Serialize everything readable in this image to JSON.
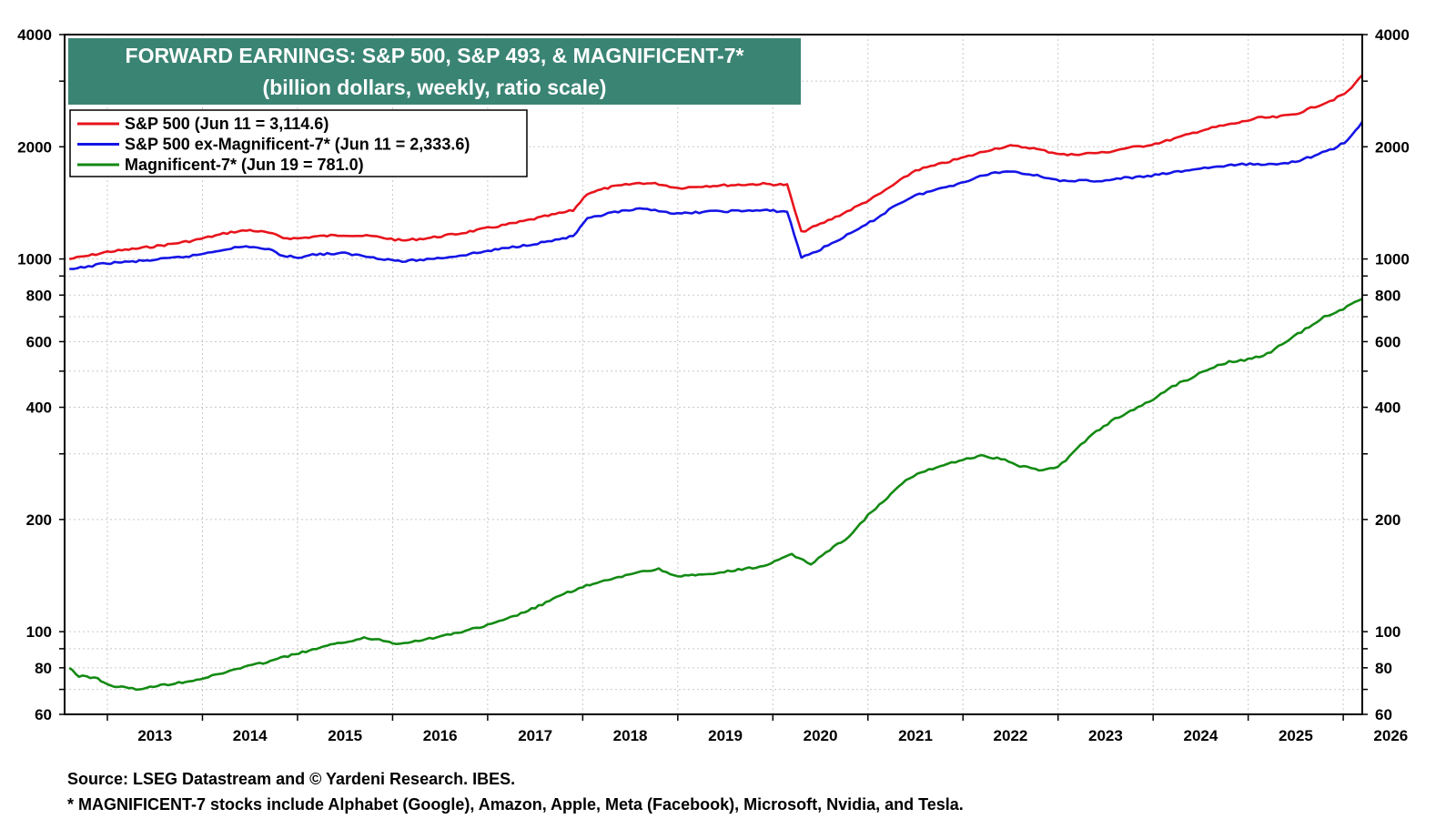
{
  "chart_data": {
    "type": "line",
    "title": "FORWARD EARNINGS: S&P 500, S&P 493, & MAGNIFICENT-7*",
    "subtitle": "(billion dollars, weekly, ratio scale)",
    "xlabel": "",
    "ylabel": "",
    "y_scale": "log",
    "ylim": [
      60,
      4000
    ],
    "y_ticks": [
      60,
      80,
      100,
      200,
      400,
      600,
      800,
      1000,
      2000,
      4000
    ],
    "y_tick_labels": [
      "60",
      "80",
      "100",
      "200",
      "400",
      "600",
      "800",
      "1000",
      "2000",
      "4000"
    ],
    "xlim": [
      2012.55,
      2026.2
    ],
    "x_tick_labels": [
      "2013",
      "2014",
      "2015",
      "2016",
      "2017",
      "2018",
      "2019",
      "2020",
      "2021",
      "2022",
      "2023",
      "2024",
      "2025",
      "2026"
    ],
    "grid": true,
    "legend_position": "top-left",
    "series": [
      {
        "name": "S&P 500 (Jun 11 = 3,114.6)",
        "color": "#e8141c",
        "points": [
          [
            2012.6,
            1000
          ],
          [
            2012.8,
            1020
          ],
          [
            2013.0,
            1045
          ],
          [
            2013.3,
            1065
          ],
          [
            2013.6,
            1090
          ],
          [
            2013.9,
            1120
          ],
          [
            2014.1,
            1150
          ],
          [
            2014.3,
            1180
          ],
          [
            2014.5,
            1195
          ],
          [
            2014.7,
            1175
          ],
          [
            2014.85,
            1140
          ],
          [
            2015.0,
            1135
          ],
          [
            2015.2,
            1150
          ],
          [
            2015.5,
            1160
          ],
          [
            2015.8,
            1150
          ],
          [
            2016.1,
            1120
          ],
          [
            2016.4,
            1140
          ],
          [
            2016.7,
            1170
          ],
          [
            2017.0,
            1210
          ],
          [
            2017.3,
            1250
          ],
          [
            2017.6,
            1300
          ],
          [
            2017.9,
            1350
          ],
          [
            2018.05,
            1500
          ],
          [
            2018.3,
            1560
          ],
          [
            2018.6,
            1600
          ],
          [
            2018.8,
            1590
          ],
          [
            2019.0,
            1550
          ],
          [
            2019.3,
            1570
          ],
          [
            2019.6,
            1580
          ],
          [
            2019.9,
            1590
          ],
          [
            2020.15,
            1580
          ],
          [
            2020.3,
            1180
          ],
          [
            2020.5,
            1240
          ],
          [
            2020.7,
            1310
          ],
          [
            2020.9,
            1390
          ],
          [
            2021.1,
            1480
          ],
          [
            2021.3,
            1600
          ],
          [
            2021.5,
            1730
          ],
          [
            2021.7,
            1780
          ],
          [
            2021.9,
            1840
          ],
          [
            2022.1,
            1900
          ],
          [
            2022.3,
            1970
          ],
          [
            2022.5,
            2010
          ],
          [
            2022.7,
            1990
          ],
          [
            2022.9,
            1940
          ],
          [
            2023.1,
            1900
          ],
          [
            2023.3,
            1920
          ],
          [
            2023.5,
            1930
          ],
          [
            2023.7,
            1980
          ],
          [
            2023.9,
            2010
          ],
          [
            2024.1,
            2060
          ],
          [
            2024.3,
            2130
          ],
          [
            2024.5,
            2210
          ],
          [
            2024.7,
            2270
          ],
          [
            2024.9,
            2320
          ],
          [
            2025.1,
            2390
          ],
          [
            2025.3,
            2400
          ],
          [
            2025.5,
            2450
          ],
          [
            2025.7,
            2560
          ],
          [
            2025.9,
            2680
          ],
          [
            2026.05,
            2810
          ],
          [
            2026.2,
            3114.6
          ]
        ]
      },
      {
        "name": "S&P 500 ex-Magnificent-7* (Jun 11 = 2,333.6)",
        "color": "#1414e6",
        "points": [
          [
            2012.6,
            935
          ],
          [
            2012.8,
            955
          ],
          [
            2013.0,
            975
          ],
          [
            2013.3,
            985
          ],
          [
            2013.6,
            1000
          ],
          [
            2013.9,
            1020
          ],
          [
            2014.1,
            1045
          ],
          [
            2014.3,
            1070
          ],
          [
            2014.5,
            1080
          ],
          [
            2014.7,
            1060
          ],
          [
            2014.85,
            1020
          ],
          [
            2015.0,
            1010
          ],
          [
            2015.2,
            1030
          ],
          [
            2015.5,
            1035
          ],
          [
            2015.8,
            1010
          ],
          [
            2016.1,
            985
          ],
          [
            2016.4,
            1000
          ],
          [
            2016.7,
            1020
          ],
          [
            2017.0,
            1050
          ],
          [
            2017.3,
            1080
          ],
          [
            2017.6,
            1110
          ],
          [
            2017.9,
            1150
          ],
          [
            2018.05,
            1280
          ],
          [
            2018.3,
            1330
          ],
          [
            2018.6,
            1360
          ],
          [
            2018.8,
            1350
          ],
          [
            2019.0,
            1320
          ],
          [
            2019.3,
            1340
          ],
          [
            2019.6,
            1345
          ],
          [
            2019.9,
            1350
          ],
          [
            2020.15,
            1340
          ],
          [
            2020.3,
            1010
          ],
          [
            2020.5,
            1060
          ],
          [
            2020.7,
            1130
          ],
          [
            2020.9,
            1200
          ],
          [
            2021.1,
            1290
          ],
          [
            2021.3,
            1400
          ],
          [
            2021.5,
            1480
          ],
          [
            2021.7,
            1530
          ],
          [
            2021.9,
            1580
          ],
          [
            2022.1,
            1640
          ],
          [
            2022.3,
            1700
          ],
          [
            2022.5,
            1720
          ],
          [
            2022.7,
            1690
          ],
          [
            2022.9,
            1650
          ],
          [
            2023.1,
            1610
          ],
          [
            2023.3,
            1625
          ],
          [
            2023.5,
            1620
          ],
          [
            2023.7,
            1650
          ],
          [
            2023.9,
            1660
          ],
          [
            2024.1,
            1690
          ],
          [
            2024.3,
            1720
          ],
          [
            2024.5,
            1750
          ],
          [
            2024.7,
            1770
          ],
          [
            2024.9,
            1790
          ],
          [
            2025.1,
            1800
          ],
          [
            2025.3,
            1790
          ],
          [
            2025.5,
            1830
          ],
          [
            2025.7,
            1890
          ],
          [
            2025.9,
            1980
          ],
          [
            2026.05,
            2080
          ],
          [
            2026.2,
            2333.6
          ]
        ]
      },
      {
        "name": "Magnificent-7* (Jun 19 = 781.0)",
        "color": "#138a13",
        "points": [
          [
            2012.6,
            80
          ],
          [
            2012.7,
            76
          ],
          [
            2012.9,
            75
          ],
          [
            2013.0,
            72
          ],
          [
            2013.3,
            70
          ],
          [
            2013.6,
            72
          ],
          [
            2013.9,
            74
          ],
          [
            2014.1,
            76
          ],
          [
            2014.4,
            80
          ],
          [
            2014.6,
            82
          ],
          [
            2014.9,
            86
          ],
          [
            2015.2,
            90
          ],
          [
            2015.5,
            94
          ],
          [
            2015.7,
            96
          ],
          [
            2015.9,
            95
          ],
          [
            2016.0,
            93
          ],
          [
            2016.2,
            94
          ],
          [
            2016.5,
            97
          ],
          [
            2016.8,
            101
          ],
          [
            2017.0,
            104
          ],
          [
            2017.2,
            108
          ],
          [
            2017.5,
            116
          ],
          [
            2017.8,
            126
          ],
          [
            2018.0,
            132
          ],
          [
            2018.3,
            138
          ],
          [
            2018.6,
            145
          ],
          [
            2018.8,
            147
          ],
          [
            2019.0,
            141
          ],
          [
            2019.3,
            142
          ],
          [
            2019.6,
            146
          ],
          [
            2019.9,
            150
          ],
          [
            2020.1,
            157
          ],
          [
            2020.2,
            161
          ],
          [
            2020.4,
            152
          ],
          [
            2020.6,
            166
          ],
          [
            2020.8,
            180
          ],
          [
            2021.0,
            205
          ],
          [
            2021.2,
            228
          ],
          [
            2021.4,
            255
          ],
          [
            2021.6,
            270
          ],
          [
            2021.8,
            280
          ],
          [
            2022.0,
            290
          ],
          [
            2022.2,
            296
          ],
          [
            2022.4,
            291
          ],
          [
            2022.6,
            278
          ],
          [
            2022.8,
            272
          ],
          [
            2023.0,
            276
          ],
          [
            2023.2,
            310
          ],
          [
            2023.4,
            345
          ],
          [
            2023.6,
            372
          ],
          [
            2023.8,
            395
          ],
          [
            2024.0,
            420
          ],
          [
            2024.2,
            455
          ],
          [
            2024.4,
            480
          ],
          [
            2024.6,
            510
          ],
          [
            2024.8,
            530
          ],
          [
            2025.0,
            537
          ],
          [
            2025.2,
            556
          ],
          [
            2025.4,
            600
          ],
          [
            2025.6,
            648
          ],
          [
            2025.8,
            700
          ],
          [
            2026.0,
            735
          ],
          [
            2026.2,
            781
          ]
        ]
      }
    ]
  },
  "page": {
    "footnote_source": "Source: LSEG Datastream and © Yardeni Research. IBES.",
    "footnote_mag7": "* MAGNIFICENT-7 stocks include Alphabet (Google), Amazon, Apple, Meta (Facebook), Microsoft, Nvidia, and Tesla."
  },
  "colors": {
    "title_box": "#3a8474",
    "title_text": "#ffffff",
    "grid": "#c8c8c8",
    "frame": "#000000"
  }
}
